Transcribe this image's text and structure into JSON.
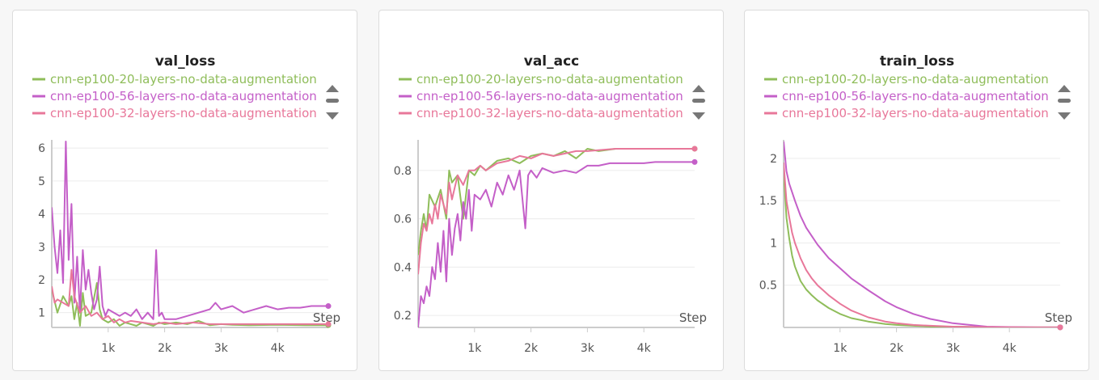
{
  "chart_data": [
    {
      "type": "line",
      "title": "val_loss",
      "xlabel": "Step",
      "ylabel": "",
      "xlim": [
        0,
        4900
      ],
      "ylim": [
        0.55,
        6.2
      ],
      "xticks": [
        1000,
        2000,
        3000,
        4000
      ],
      "xtick_labels": [
        "1k",
        "2k",
        "3k",
        "4k"
      ],
      "yticks": [
        1,
        2,
        3,
        4,
        5,
        6
      ],
      "ytick_labels": [
        "1",
        "2",
        "3",
        "4",
        "5",
        "6"
      ],
      "legend_position": "top",
      "series": [
        {
          "name": "cnn-ep100-20-layers-no-data-augmentation",
          "color": "#8fbd5a",
          "x": [
            0,
            100,
            200,
            300,
            350,
            400,
            450,
            500,
            550,
            600,
            700,
            800,
            850,
            900,
            1000,
            1100,
            1200,
            1300,
            1400,
            1500,
            1600,
            1700,
            1800,
            1900,
            2000,
            2200,
            2400,
            2600,
            2800,
            3000,
            3200,
            3500,
            4000,
            4500,
            4900
          ],
          "y": [
            1.7,
            1.0,
            1.5,
            1.2,
            1.5,
            0.8,
            1.3,
            0.6,
            1.6,
            0.9,
            1.0,
            1.9,
            1.1,
            0.8,
            0.7,
            0.8,
            0.6,
            0.7,
            0.65,
            0.6,
            0.7,
            0.65,
            0.6,
            0.7,
            0.65,
            0.7,
            0.65,
            0.75,
            0.62,
            0.65,
            0.63,
            0.62,
            0.63,
            0.62,
            0.62
          ]
        },
        {
          "name": "cnn-ep100-56-layers-no-data-augmentation",
          "color": "#c45fc8",
          "x": [
            0,
            50,
            100,
            150,
            200,
            250,
            300,
            350,
            400,
            450,
            500,
            550,
            600,
            650,
            700,
            750,
            800,
            850,
            900,
            950,
            1000,
            1100,
            1200,
            1300,
            1400,
            1500,
            1600,
            1700,
            1800,
            1850,
            1900,
            1950,
            2000,
            2200,
            2400,
            2600,
            2800,
            2900,
            3000,
            3200,
            3400,
            3600,
            3800,
            4000,
            4200,
            4400,
            4600,
            4900
          ],
          "y": [
            4.2,
            3.0,
            2.2,
            3.5,
            1.9,
            6.2,
            2.6,
            4.3,
            1.3,
            2.7,
            1.0,
            2.9,
            1.7,
            2.3,
            1.6,
            1.1,
            1.4,
            2.4,
            1.2,
            0.9,
            1.1,
            1.0,
            0.9,
            1.0,
            0.9,
            1.1,
            0.8,
            1.0,
            0.8,
            2.9,
            0.9,
            1.0,
            0.8,
            0.8,
            0.9,
            1.0,
            1.1,
            1.3,
            1.1,
            1.2,
            1.0,
            1.1,
            1.2,
            1.1,
            1.15,
            1.15,
            1.2,
            1.2
          ]
        },
        {
          "name": "cnn-ep100-32-layers-no-data-augmentation",
          "color": "#e8779a",
          "x": [
            0,
            50,
            100,
            200,
            300,
            350,
            400,
            500,
            600,
            700,
            800,
            900,
            1000,
            1100,
            1200,
            1300,
            1400,
            1600,
            1800,
            2000,
            2200,
            2500,
            2800,
            3000,
            3500,
            4000,
            4500,
            4900
          ],
          "y": [
            1.8,
            1.3,
            1.4,
            1.3,
            1.2,
            2.3,
            1.5,
            1.0,
            1.2,
            0.9,
            1.0,
            0.8,
            0.9,
            0.7,
            0.8,
            0.7,
            0.75,
            0.7,
            0.65,
            0.7,
            0.65,
            0.7,
            0.65,
            0.65,
            0.65,
            0.65,
            0.65,
            0.65
          ]
        }
      ]
    },
    {
      "type": "line",
      "title": "val_acc",
      "xlabel": "Step",
      "ylabel": "",
      "xlim": [
        0,
        4900
      ],
      "ylim": [
        0.15,
        0.92
      ],
      "xticks": [
        1000,
        2000,
        3000,
        4000
      ],
      "xtick_labels": [
        "1k",
        "2k",
        "3k",
        "4k"
      ],
      "yticks": [
        0.2,
        0.4,
        0.6,
        0.8
      ],
      "ytick_labels": [
        "0.2",
        "0.4",
        "0.6",
        "0.8"
      ],
      "legend_position": "top",
      "series": [
        {
          "name": "cnn-ep100-20-layers-no-data-augmentation",
          "color": "#8fbd5a",
          "x": [
            0,
            50,
            100,
            150,
            200,
            300,
            400,
            500,
            550,
            600,
            700,
            800,
            900,
            1000,
            1100,
            1200,
            1400,
            1600,
            1800,
            2000,
            2200,
            2400,
            2600,
            2800,
            3000,
            3200,
            3500,
            4000,
            4500,
            4900
          ],
          "y": [
            0.45,
            0.55,
            0.62,
            0.55,
            0.7,
            0.65,
            0.72,
            0.6,
            0.8,
            0.75,
            0.78,
            0.6,
            0.8,
            0.78,
            0.82,
            0.8,
            0.84,
            0.85,
            0.83,
            0.86,
            0.87,
            0.86,
            0.88,
            0.85,
            0.89,
            0.88,
            0.89,
            0.89,
            0.89,
            0.89
          ]
        },
        {
          "name": "cnn-ep100-56-layers-no-data-augmentation",
          "color": "#c45fc8",
          "x": [
            0,
            50,
            100,
            150,
            200,
            250,
            300,
            350,
            400,
            450,
            500,
            550,
            600,
            650,
            700,
            750,
            800,
            850,
            900,
            950,
            1000,
            1100,
            1200,
            1300,
            1400,
            1500,
            1600,
            1700,
            1800,
            1900,
            1950,
            2000,
            2100,
            2200,
            2400,
            2600,
            2800,
            3000,
            3200,
            3400,
            3600,
            3800,
            4000,
            4200,
            4400,
            4600,
            4900
          ],
          "y": [
            0.15,
            0.28,
            0.25,
            0.32,
            0.28,
            0.4,
            0.35,
            0.5,
            0.38,
            0.55,
            0.34,
            0.6,
            0.45,
            0.56,
            0.62,
            0.51,
            0.67,
            0.6,
            0.72,
            0.55,
            0.7,
            0.68,
            0.72,
            0.65,
            0.75,
            0.7,
            0.78,
            0.72,
            0.8,
            0.56,
            0.78,
            0.8,
            0.77,
            0.81,
            0.79,
            0.8,
            0.79,
            0.82,
            0.82,
            0.83,
            0.83,
            0.83,
            0.83,
            0.835,
            0.835,
            0.835,
            0.835
          ]
        },
        {
          "name": "cnn-ep100-32-layers-no-data-augmentation",
          "color": "#e8779a",
          "x": [
            0,
            50,
            100,
            150,
            200,
            250,
            300,
            350,
            400,
            500,
            550,
            600,
            700,
            800,
            900,
            1000,
            1100,
            1200,
            1400,
            1600,
            1800,
            2000,
            2200,
            2400,
            2600,
            2800,
            3000,
            3500,
            4000,
            4500,
            4900
          ],
          "y": [
            0.37,
            0.5,
            0.58,
            0.55,
            0.62,
            0.58,
            0.66,
            0.6,
            0.7,
            0.62,
            0.75,
            0.68,
            0.78,
            0.74,
            0.8,
            0.8,
            0.82,
            0.8,
            0.83,
            0.84,
            0.86,
            0.85,
            0.87,
            0.86,
            0.87,
            0.88,
            0.88,
            0.89,
            0.89,
            0.89,
            0.89
          ]
        }
      ]
    },
    {
      "type": "line",
      "title": "train_loss",
      "xlabel": "Step",
      "ylabel": "",
      "xlim": [
        0,
        4900
      ],
      "ylim": [
        0,
        2.2
      ],
      "xticks": [
        1000,
        2000,
        3000,
        4000
      ],
      "xtick_labels": [
        "1k",
        "2k",
        "3k",
        "4k"
      ],
      "yticks": [
        0.5,
        1,
        1.5,
        2
      ],
      "ytick_labels": [
        "0.5",
        "1",
        "1.5",
        "2"
      ],
      "legend_position": "top",
      "series": [
        {
          "name": "cnn-ep100-20-layers-no-data-augmentation",
          "color": "#8fbd5a",
          "x": [
            0,
            50,
            100,
            150,
            200,
            300,
            400,
            500,
            600,
            800,
            1000,
            1200,
            1500,
            1800,
            2000,
            2300,
            2600,
            3000,
            3500,
            4000,
            4500,
            4900
          ],
          "y": [
            1.85,
            1.3,
            1.05,
            0.85,
            0.72,
            0.55,
            0.45,
            0.38,
            0.32,
            0.23,
            0.16,
            0.11,
            0.07,
            0.04,
            0.03,
            0.02,
            0.01,
            0.01,
            0.005,
            0.002,
            0.001,
            0.001
          ]
        },
        {
          "name": "cnn-ep100-56-layers-no-data-augmentation",
          "color": "#c45fc8",
          "x": [
            0,
            50,
            100,
            150,
            200,
            300,
            400,
            500,
            600,
            800,
            1000,
            1200,
            1500,
            1800,
            2000,
            2300,
            2600,
            3000,
            3300,
            3600,
            4000,
            4500,
            4900
          ],
          "y": [
            2.2,
            1.85,
            1.7,
            1.6,
            1.5,
            1.32,
            1.18,
            1.08,
            0.98,
            0.82,
            0.7,
            0.58,
            0.44,
            0.31,
            0.24,
            0.16,
            0.1,
            0.05,
            0.03,
            0.01,
            0.005,
            0.001,
            0.001
          ]
        },
        {
          "name": "cnn-ep100-32-layers-no-data-augmentation",
          "color": "#e8779a",
          "x": [
            0,
            50,
            100,
            150,
            200,
            300,
            400,
            500,
            600,
            800,
            1000,
            1200,
            1500,
            1800,
            2000,
            2300,
            2600,
            3000,
            3500,
            4000,
            4500,
            4900
          ],
          "y": [
            1.95,
            1.5,
            1.3,
            1.12,
            1.0,
            0.82,
            0.68,
            0.58,
            0.5,
            0.38,
            0.28,
            0.2,
            0.12,
            0.07,
            0.05,
            0.03,
            0.02,
            0.01,
            0.005,
            0.002,
            0.001,
            0.001
          ]
        }
      ]
    }
  ]
}
